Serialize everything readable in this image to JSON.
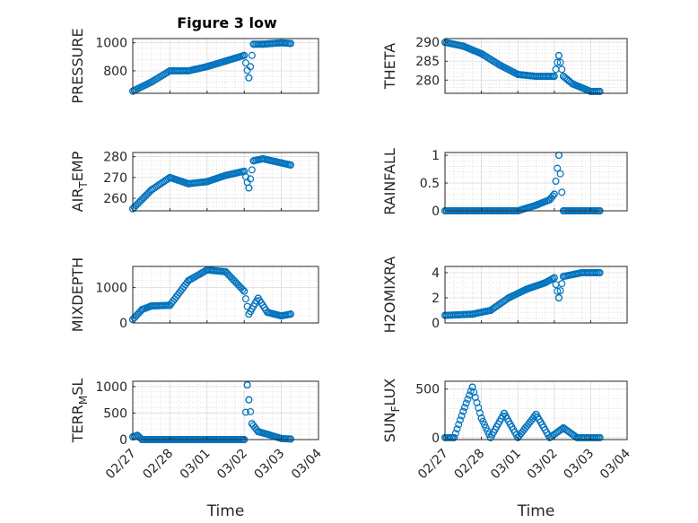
{
  "figure": {
    "title": "Figure 3 low",
    "marker_color": "#0072BD",
    "x_tick_labels": [
      "02/27",
      "02/28",
      "03/01",
      "03/02",
      "03/03",
      "03/04"
    ],
    "x_label": "Time"
  },
  "chart_data": [
    {
      "type": "scatter",
      "title": "Figure 3 low",
      "ylabel": "PRESSURE",
      "xlabel": "",
      "ylim": [
        640,
        1030
      ],
      "yticks": [
        800,
        1000
      ],
      "grid": true,
      "x_range": [
        "02/27",
        "03/04"
      ],
      "key_points": [
        [
          "02/27 00:00",
          655
        ],
        [
          "02/27 12:00",
          720
        ],
        [
          "02/28 00:00",
          800
        ],
        [
          "02/28 12:00",
          800
        ],
        [
          "03/01 00:00",
          830
        ],
        [
          "03/01 12:00",
          870
        ],
        [
          "03/02 00:00",
          910
        ],
        [
          "03/02 03:00",
          750
        ],
        [
          "03/02 06:00",
          990
        ],
        [
          "03/02 12:00",
          990
        ],
        [
          "03/03 00:00",
          1000
        ],
        [
          "03/03 06:00",
          995
        ]
      ]
    },
    {
      "type": "scatter",
      "ylabel": "THETA",
      "xlabel": "",
      "ylim": [
        276.5,
        291
      ],
      "yticks": [
        280,
        285,
        290
      ],
      "grid": true,
      "x_range": [
        "02/27",
        "03/04"
      ],
      "key_points": [
        [
          "02/27 00:00",
          290
        ],
        [
          "02/27 12:00",
          289
        ],
        [
          "02/28 00:00",
          287
        ],
        [
          "02/28 12:00",
          284
        ],
        [
          "03/01 00:00",
          281.5
        ],
        [
          "03/01 12:00",
          281
        ],
        [
          "03/02 00:00",
          281
        ],
        [
          "03/02 03:00",
          286.5
        ],
        [
          "03/02 06:00",
          281
        ],
        [
          "03/02 12:00",
          279
        ],
        [
          "03/03 00:00",
          277
        ],
        [
          "03/03 06:00",
          277
        ]
      ]
    },
    {
      "type": "scatter",
      "ylabel": "AIR_TEMP",
      "xlabel": "",
      "ylim": [
        254,
        282
      ],
      "yticks": [
        260,
        270,
        280
      ],
      "grid": true,
      "x_range": [
        "02/27",
        "03/04"
      ],
      "key_points": [
        [
          "02/27 00:00",
          255
        ],
        [
          "02/27 12:00",
          264
        ],
        [
          "02/28 00:00",
          270
        ],
        [
          "02/28 12:00",
          267
        ],
        [
          "03/01 00:00",
          268
        ],
        [
          "03/01 12:00",
          271
        ],
        [
          "03/02 00:00",
          273
        ],
        [
          "03/02 03:00",
          265
        ],
        [
          "03/02 06:00",
          278
        ],
        [
          "03/02 12:00",
          279
        ],
        [
          "03/03 00:00",
          277
        ],
        [
          "03/03 06:00",
          276
        ]
      ]
    },
    {
      "type": "scatter",
      "ylabel": "MIXDEPTH",
      "xlabel": "",
      "ylim": [
        0,
        1600
      ],
      "yticks": [
        0,
        1000
      ],
      "grid": true,
      "x_range": [
        "02/27",
        "03/04"
      ],
      "key_points": [
        [
          "02/27 00:00",
          100
        ],
        [
          "02/27 06:00",
          380
        ],
        [
          "02/27 12:00",
          480
        ],
        [
          "02/28 00:00",
          500
        ],
        [
          "02/28 12:00",
          1200
        ],
        [
          "03/01 00:00",
          1500
        ],
        [
          "03/01 12:00",
          1450
        ],
        [
          "03/02 00:00",
          900
        ],
        [
          "03/02 03:00",
          250
        ],
        [
          "03/02 09:00",
          700
        ],
        [
          "03/02 15:00",
          300
        ],
        [
          "03/03 00:00",
          200
        ],
        [
          "03/03 06:00",
          250
        ]
      ]
    },
    {
      "type": "scatter",
      "ylabel": "RAINFALL",
      "xlabel": "",
      "ylim": [
        0,
        1.05
      ],
      "yticks": [
        0,
        0.5,
        1
      ],
      "grid": true,
      "x_range": [
        "02/27",
        "03/04"
      ],
      "key_points": [
        [
          "02/27 00:00",
          0
        ],
        [
          "03/01 00:00",
          0
        ],
        [
          "03/01 12:00",
          0.1
        ],
        [
          "03/01 21:00",
          0.2
        ],
        [
          "03/02 00:00",
          0.3
        ],
        [
          "03/02 03:00",
          1.0
        ],
        [
          "03/02 06:00",
          0
        ],
        [
          "03/03 06:00",
          0
        ]
      ]
    },
    {
      "type": "scatter",
      "ylabel": "H2OMIXRA",
      "xlabel": "",
      "ylim": [
        0,
        4.5
      ],
      "yticks": [
        0,
        2,
        4
      ],
      "grid": true,
      "x_range": [
        "02/27",
        "03/04"
      ],
      "key_points": [
        [
          "02/27 00:00",
          0.6
        ],
        [
          "02/27 18:00",
          0.7
        ],
        [
          "02/28 06:00",
          1.0
        ],
        [
          "02/28 18:00",
          2.0
        ],
        [
          "03/01 06:00",
          2.7
        ],
        [
          "03/01 18:00",
          3.2
        ],
        [
          "03/02 00:00",
          3.6
        ],
        [
          "03/02 03:00",
          2.0
        ],
        [
          "03/02 06:00",
          3.7
        ],
        [
          "03/02 18:00",
          4.0
        ],
        [
          "03/03 06:00",
          4.0
        ]
      ]
    },
    {
      "type": "scatter",
      "ylabel": "TERR_MSL",
      "xlabel": "Time",
      "ylim": [
        0,
        1100
      ],
      "yticks": [
        0,
        500,
        1000
      ],
      "grid": true,
      "x_range": [
        "02/27",
        "03/04"
      ],
      "key_points": [
        [
          "02/27 00:00",
          50
        ],
        [
          "02/27 03:00",
          80
        ],
        [
          "02/27 06:00",
          0
        ],
        [
          "03/02 00:00",
          0
        ],
        [
          "03/02 02:00",
          1030
        ],
        [
          "03/02 03:00",
          750
        ],
        [
          "03/02 05:00",
          300
        ],
        [
          "03/02 09:00",
          150
        ],
        [
          "03/02 15:00",
          100
        ],
        [
          "03/03 00:00",
          20
        ],
        [
          "03/03 06:00",
          10
        ]
      ]
    },
    {
      "type": "scatter",
      "ylabel": "SUN_FLUX",
      "xlabel": "Time",
      "ylim": [
        -20,
        580
      ],
      "yticks": [
        0,
        500
      ],
      "grid": true,
      "x_range": [
        "02/27",
        "03/04"
      ],
      "key_points": [
        [
          "02/27 00:00",
          0
        ],
        [
          "02/27 06:00",
          0
        ],
        [
          "02/27 12:00",
          270
        ],
        [
          "02/27 18:00",
          520
        ],
        [
          "02/28 00:00",
          200
        ],
        [
          "02/28 06:00",
          0
        ],
        [
          "02/28 15:00",
          250
        ],
        [
          "03/01 00:00",
          0
        ],
        [
          "03/01 12:00",
          240
        ],
        [
          "03/01 21:00",
          0
        ],
        [
          "03/02 06:00",
          100
        ],
        [
          "03/02 15:00",
          0
        ],
        [
          "03/03 06:00",
          0
        ]
      ]
    }
  ]
}
